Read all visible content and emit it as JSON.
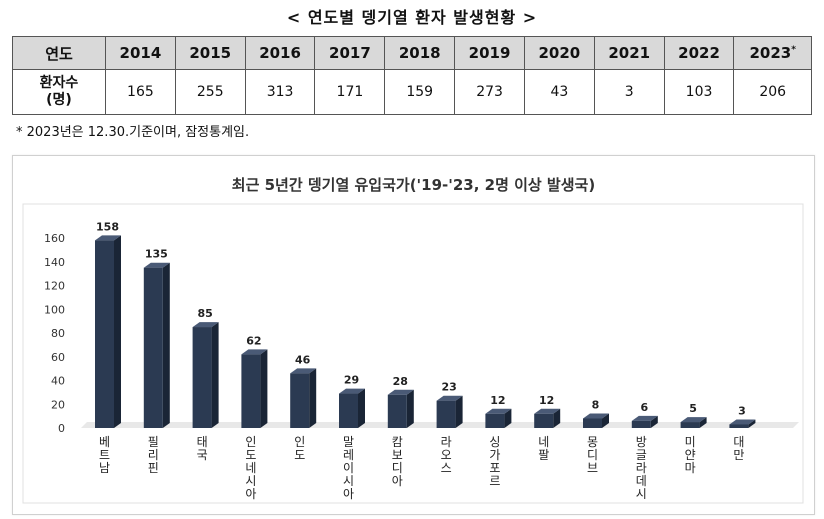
{
  "header": {
    "title": "< 연도별 뎅기열 환자 발생현황 >"
  },
  "table": {
    "row_label_year": "연도",
    "row_label_count": "환자수\n(명)",
    "years": [
      "2014",
      "2015",
      "2016",
      "2017",
      "2018",
      "2019",
      "2020",
      "2021",
      "2022",
      "2023"
    ],
    "last_year_mark": "*",
    "counts": [
      "165",
      "255",
      "313",
      "171",
      "159",
      "273",
      "43",
      "3",
      "103",
      "206"
    ]
  },
  "footnote": "*  2023년은  12.30.기준이며,  잠정통계임.",
  "chart_data": {
    "type": "bar",
    "title": "최근 5년간 뎅기열 유입국가('19-'23, 2명 이상 발생국)",
    "categories": [
      "베트남",
      "필리핀",
      "태국",
      "인도네시아",
      "인도",
      "말레이시아",
      "캄보디아",
      "라오스",
      "싱가포르",
      "네팔",
      "몽디브",
      "방글라데시",
      "미얀마",
      "대만"
    ],
    "values": [
      158,
      135,
      85,
      62,
      46,
      29,
      28,
      23,
      12,
      12,
      8,
      6,
      5,
      3
    ],
    "ylim": [
      0,
      160
    ],
    "yticks": [
      "0",
      "20",
      "40",
      "60",
      "80",
      "100",
      "120",
      "140",
      "160"
    ],
    "grid": false,
    "colors": {
      "bar_front": "#2b3a52",
      "bar_side": "#1a2536",
      "bar_top": "#4a5a76",
      "floor": "#e8e8e8"
    }
  }
}
